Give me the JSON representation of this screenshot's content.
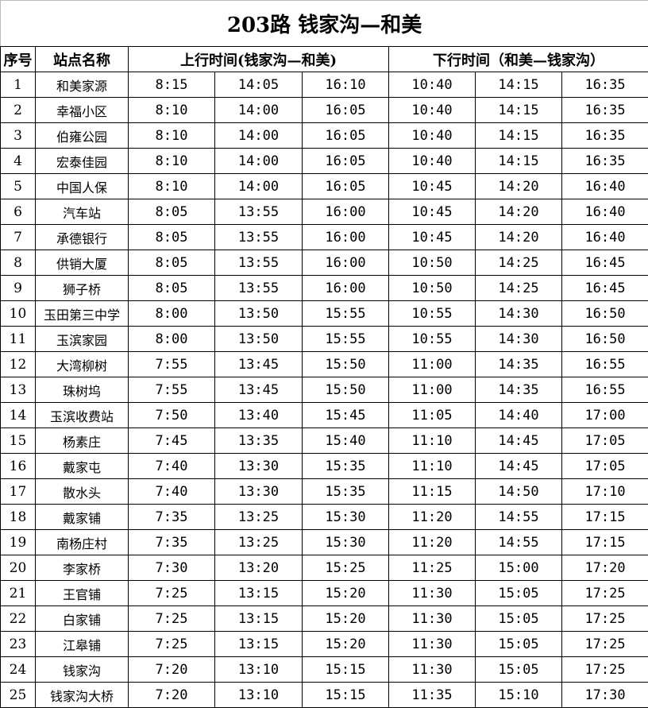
{
  "title": "203路  钱家沟—和美",
  "headers": {
    "index": "序号",
    "station": "站点名称",
    "up": "上行时间(钱家沟—和美)",
    "down": "下行时间（和美—钱家沟）"
  },
  "rows": [
    {
      "no": "1",
      "station": "和美家源",
      "up": [
        "8:15",
        "14:05",
        "16:10"
      ],
      "down": [
        "10:40",
        "14:15",
        "16:35"
      ]
    },
    {
      "no": "2",
      "station": "幸福小区",
      "up": [
        "8:10",
        "14:00",
        "16:05"
      ],
      "down": [
        "10:40",
        "14:15",
        "16:35"
      ]
    },
    {
      "no": "3",
      "station": "伯雍公园",
      "up": [
        "8:10",
        "14:00",
        "16:05"
      ],
      "down": [
        "10:40",
        "14:15",
        "16:35"
      ]
    },
    {
      "no": "4",
      "station": "宏泰佳园",
      "up": [
        "8:10",
        "14:00",
        "16:05"
      ],
      "down": [
        "10:40",
        "14:15",
        "16:35"
      ]
    },
    {
      "no": "5",
      "station": "中国人保",
      "up": [
        "8:10",
        "14:00",
        "16:05"
      ],
      "down": [
        "10:45",
        "14:20",
        "16:40"
      ]
    },
    {
      "no": "6",
      "station": "汽车站",
      "up": [
        "8:05",
        "13:55",
        "16:00"
      ],
      "down": [
        "10:45",
        "14:20",
        "16:40"
      ]
    },
    {
      "no": "7",
      "station": "承德银行",
      "up": [
        "8:05",
        "13:55",
        "16:00"
      ],
      "down": [
        "10:45",
        "14:20",
        "16:40"
      ]
    },
    {
      "no": "8",
      "station": "供销大厦",
      "up": [
        "8:05",
        "13:55",
        "16:00"
      ],
      "down": [
        "10:50",
        "14:25",
        "16:45"
      ]
    },
    {
      "no": "9",
      "station": "狮子桥",
      "up": [
        "8:05",
        "13:55",
        "16:00"
      ],
      "down": [
        "10:50",
        "14:25",
        "16:45"
      ]
    },
    {
      "no": "10",
      "station": "玉田第三中学",
      "up": [
        "8:00",
        "13:50",
        "15:55"
      ],
      "down": [
        "10:55",
        "14:30",
        "16:50"
      ]
    },
    {
      "no": "11",
      "station": "玉滨家园",
      "up": [
        "8:00",
        "13:50",
        "15:55"
      ],
      "down": [
        "10:55",
        "14:30",
        "16:50"
      ]
    },
    {
      "no": "12",
      "station": "大湾柳树",
      "up": [
        "7:55",
        "13:45",
        "15:50"
      ],
      "down": [
        "11:00",
        "14:35",
        "16:55"
      ]
    },
    {
      "no": "13",
      "station": "珠树坞",
      "up": [
        "7:55",
        "13:45",
        "15:50"
      ],
      "down": [
        "11:00",
        "14:35",
        "16:55"
      ]
    },
    {
      "no": "14",
      "station": "玉滨收费站",
      "up": [
        "7:50",
        "13:40",
        "15:45"
      ],
      "down": [
        "11:05",
        "14:40",
        "17:00"
      ]
    },
    {
      "no": "15",
      "station": "杨素庄",
      "up": [
        "7:45",
        "13:35",
        "15:40"
      ],
      "down": [
        "11:10",
        "14:45",
        "17:05"
      ]
    },
    {
      "no": "16",
      "station": "戴家屯",
      "up": [
        "7:40",
        "13:30",
        "15:35"
      ],
      "down": [
        "11:10",
        "14:45",
        "17:05"
      ]
    },
    {
      "no": "17",
      "station": "散水头",
      "up": [
        "7:40",
        "13:30",
        "15:35"
      ],
      "down": [
        "11:15",
        "14:50",
        "17:10"
      ]
    },
    {
      "no": "18",
      "station": "戴家铺",
      "up": [
        "7:35",
        "13:25",
        "15:30"
      ],
      "down": [
        "11:20",
        "14:55",
        "17:15"
      ]
    },
    {
      "no": "19",
      "station": "南杨庄村",
      "up": [
        "7:35",
        "13:25",
        "15:30"
      ],
      "down": [
        "11:20",
        "14:55",
        "17:15"
      ]
    },
    {
      "no": "20",
      "station": "李家桥",
      "up": [
        "7:30",
        "13:20",
        "15:25"
      ],
      "down": [
        "11:25",
        "15:00",
        "17:20"
      ]
    },
    {
      "no": "21",
      "station": "王官铺",
      "up": [
        "7:25",
        "13:15",
        "15:20"
      ],
      "down": [
        "11:30",
        "15:05",
        "17:25"
      ]
    },
    {
      "no": "22",
      "station": "白家铺",
      "up": [
        "7:25",
        "13:15",
        "15:20"
      ],
      "down": [
        "11:30",
        "15:05",
        "17:25"
      ]
    },
    {
      "no": "23",
      "station": "江皋铺",
      "up": [
        "7:25",
        "13:15",
        "15:20"
      ],
      "down": [
        "11:30",
        "15:05",
        "17:25"
      ]
    },
    {
      "no": "24",
      "station": "钱家沟",
      "up": [
        "7:20",
        "13:10",
        "15:15"
      ],
      "down": [
        "11:30",
        "15:05",
        "17:25"
      ]
    },
    {
      "no": "25",
      "station": "钱家沟大桥",
      "up": [
        "7:20",
        "13:10",
        "15:15"
      ],
      "down": [
        "11:35",
        "15:10",
        "17:30"
      ]
    }
  ]
}
